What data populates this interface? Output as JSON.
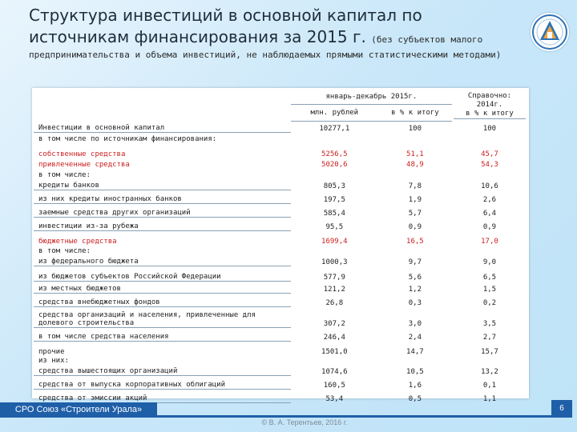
{
  "title": {
    "main": "Структура инвестиций в основной капитал по источникам финансирования за 2015 г.",
    "note_inline": "(без субъектов малого",
    "note_continuation": "предпринимательства и объема инвестиций, не наблюдаемых прямыми статистическими методами)"
  },
  "colors": {
    "accent": "#1f5fa8",
    "highlight_red": "#cc1f1f",
    "background": "#c9e7f9"
  },
  "logo_icon": "organization-logo-icon",
  "table": {
    "header_period": "январь-декабрь 2015г.",
    "header_col_abs": "млн. рублей",
    "header_col_pct": "в % к итогу",
    "header_reference": [
      "Справочно:",
      "2014г.",
      "в % к итогу"
    ],
    "rows": [
      {
        "label": "Инвестиции в основной капитал",
        "abs": "10277,1",
        "pct": "100",
        "ref": "100",
        "red": false
      },
      {
        "label": "в том числе по источникам финансирования:",
        "abs": "",
        "pct": "",
        "ref": "",
        "red": false
      },
      {
        "label": "собственные средства",
        "abs": "5256,5",
        "pct": "51,1",
        "ref": "45,7",
        "red": true
      },
      {
        "label": "привлеченные средства",
        "abs": "5020,6",
        "pct": "48,9",
        "ref": "54,3",
        "red": true
      },
      {
        "label": "в том числе:",
        "abs": "",
        "pct": "",
        "ref": "",
        "red": false
      },
      {
        "label": "кредиты банков",
        "abs": "805,3",
        "pct": "7,8",
        "ref": "10,6",
        "red": false
      },
      {
        "label": "из них кредиты иностранных банков",
        "abs": "197,5",
        "pct": "1,9",
        "ref": "2,6",
        "red": false
      },
      {
        "label": "заемные средства других организаций",
        "abs": "585,4",
        "pct": "5,7",
        "ref": "6,4",
        "red": false
      },
      {
        "label": "инвестиции из-за рубежа",
        "abs": "95,5",
        "pct": "0,9",
        "ref": "0,9",
        "red": false
      },
      {
        "label": "бюджетные средства",
        "abs": "1699,4",
        "pct": "16,5",
        "ref": "17,0",
        "red": true
      },
      {
        "label": "в том числе:",
        "abs": "",
        "pct": "",
        "ref": "",
        "red": false
      },
      {
        "label": "из федерального бюджета",
        "abs": "1000,3",
        "pct": "9,7",
        "ref": "9,0",
        "red": false
      },
      {
        "label": "из бюджетов субъектов Российской Федерации",
        "abs": "577,9",
        "pct": "5,6",
        "ref": "6,5",
        "red": false
      },
      {
        "label": "из местных бюджетов",
        "abs": "121,2",
        "pct": "1,2",
        "ref": "1,5",
        "red": false
      },
      {
        "label": "средства внебюджетных фондов",
        "abs": "26,8",
        "pct": "0,3",
        "ref": "0,2",
        "red": false
      },
      {
        "label": "средства организаций и населения, привлеченные для долевого строительства",
        "abs": "307,2",
        "pct": "3,0",
        "ref": "3,5",
        "red": false
      },
      {
        "label": "в том числе средства населения",
        "abs": "246,4",
        "pct": "2,4",
        "ref": "2,7",
        "red": false
      },
      {
        "label": "прочие",
        "abs": "1501,0",
        "pct": "14,7",
        "ref": "15,7",
        "red": false
      },
      {
        "label": "из них:",
        "abs": "",
        "pct": "",
        "ref": "",
        "red": false
      },
      {
        "label": "средства вышестоящих организаций",
        "abs": "1074,6",
        "pct": "10,5",
        "ref": "13,2",
        "red": false
      },
      {
        "label": "средства от выпуска корпоративных облигаций",
        "abs": "160,5",
        "pct": "1,6",
        "ref": "0,1",
        "red": false
      },
      {
        "label": "средства от эмиссии акций",
        "abs": "53,4",
        "pct": "0,5",
        "ref": "1,1",
        "red": false
      }
    ]
  },
  "footer": {
    "organization": "СРО Союз «Строители Урала»",
    "copyright": "© В. А. Терентьев, 2016 г.",
    "page_number": "6"
  }
}
